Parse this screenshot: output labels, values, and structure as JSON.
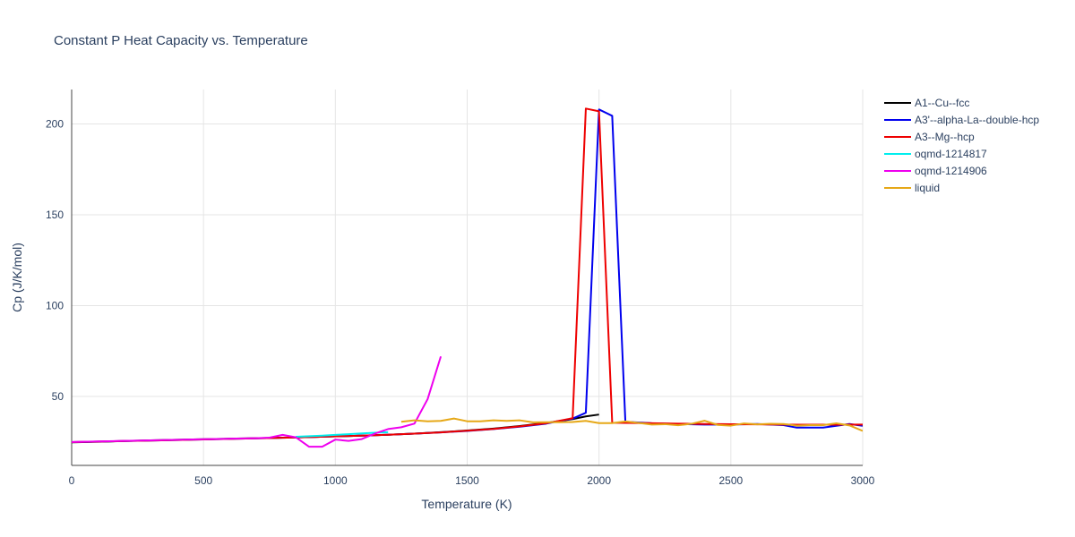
{
  "chart_data": {
    "type": "line",
    "title": "Constant P Heat Capacity vs. Temperature",
    "xlabel": "Temperature (K)",
    "ylabel": "Cp (J/K/mol)",
    "xlim": [
      0,
      3000
    ],
    "ylim": [
      12,
      219
    ],
    "xticks": [
      0,
      500,
      1000,
      1500,
      2000,
      2500,
      3000
    ],
    "yticks": [
      50,
      100,
      150,
      200
    ],
    "grid": true,
    "legend_position": "top-right",
    "series": [
      {
        "name": "A1--Cu--fcc",
        "color": "#000000",
        "x": [
          0,
          100,
          200,
          300,
          400,
          500,
          600,
          700,
          800,
          900,
          1000,
          1100,
          1200,
          1300,
          1400,
          1500,
          1600,
          1700,
          1800,
          1900,
          1950,
          2000
        ],
        "y": [
          24.7,
          25.0,
          25.4,
          25.8,
          26.1,
          26.4,
          26.7,
          27.0,
          27.3,
          27.6,
          28.0,
          28.4,
          28.9,
          29.5,
          30.3,
          31.2,
          32.3,
          33.7,
          35.4,
          37.5,
          39.0,
          40.0
        ]
      },
      {
        "name": "A3'--alpha-La--double-hcp",
        "color": "#0000ee",
        "x": [
          0,
          100,
          200,
          300,
          400,
          500,
          600,
          700,
          800,
          900,
          1000,
          1100,
          1200,
          1300,
          1400,
          1500,
          1600,
          1700,
          1800,
          1900,
          1950,
          2000,
          2050,
          2100,
          2200,
          2300,
          2400,
          2500,
          2600,
          2700,
          2750,
          2800,
          2850,
          2900,
          2950,
          3000
        ],
        "y": [
          24.8,
          25.1,
          25.4,
          25.7,
          26.0,
          26.3,
          26.6,
          26.9,
          27.2,
          27.6,
          28.0,
          28.4,
          28.9,
          29.5,
          30.2,
          31.0,
          32.0,
          33.3,
          35.0,
          37.8,
          41.0,
          208.0,
          204.5,
          36.0,
          35.2,
          34.8,
          34.5,
          34.5,
          34.8,
          34.2,
          32.8,
          32.8,
          32.8,
          33.8,
          34.8,
          33.8
        ]
      },
      {
        "name": "A3--Mg--hcp",
        "color": "#ee0000",
        "x": [
          0,
          100,
          200,
          300,
          400,
          500,
          600,
          700,
          800,
          900,
          1000,
          1100,
          1200,
          1300,
          1400,
          1500,
          1600,
          1700,
          1800,
          1900,
          1950,
          2000,
          2050,
          2100,
          2200,
          2300,
          2400,
          2500,
          2600,
          2700,
          2800,
          2900,
          3000
        ],
        "y": [
          24.8,
          25.1,
          25.4,
          25.7,
          26.0,
          26.3,
          26.6,
          26.9,
          27.2,
          27.6,
          28.0,
          28.4,
          28.9,
          29.5,
          30.2,
          31.1,
          32.1,
          33.5,
          35.2,
          38.0,
          208.5,
          207.0,
          35.5,
          35.4,
          35.2,
          35.0,
          34.8,
          34.7,
          34.6,
          34.5,
          34.4,
          34.4,
          34.5
        ]
      },
      {
        "name": "oqmd-1214817",
        "color": "#00eeee",
        "x": [
          850,
          900,
          950,
          1000,
          1050,
          1100,
          1150,
          1200
        ],
        "y": [
          27.8,
          28.1,
          28.4,
          28.8,
          29.2,
          29.6,
          30.0,
          30.3
        ]
      },
      {
        "name": "oqmd-1214906",
        "color": "#ee00ee",
        "x": [
          0,
          100,
          200,
          300,
          400,
          500,
          600,
          700,
          750,
          800,
          850,
          900,
          950,
          1000,
          1050,
          1100,
          1150,
          1200,
          1250,
          1300,
          1350,
          1400
        ],
        "y": [
          24.9,
          25.2,
          25.5,
          25.8,
          26.1,
          26.4,
          26.7,
          27.0,
          27.3,
          28.8,
          27.5,
          22.3,
          22.3,
          26.2,
          25.5,
          26.5,
          29.5,
          32.0,
          33.0,
          35.0,
          48.5,
          72.0
        ]
      },
      {
        "name": "liquid",
        "color": "#e6a817",
        "x": [
          1250,
          1300,
          1350,
          1400,
          1450,
          1500,
          1550,
          1600,
          1650,
          1700,
          1750,
          1800,
          1850,
          1900,
          1950,
          2000,
          2050,
          2100,
          2150,
          2200,
          2250,
          2300,
          2350,
          2400,
          2450,
          2500,
          2550,
          2600,
          2650,
          2700,
          2750,
          2800,
          2850,
          2900,
          2950,
          3000
        ],
        "y": [
          36.0,
          36.8,
          36.3,
          36.5,
          37.8,
          36.3,
          36.3,
          36.8,
          36.5,
          36.8,
          35.7,
          35.8,
          35.8,
          35.9,
          36.5,
          35.3,
          35.3,
          36.2,
          35.4,
          34.5,
          34.7,
          34.1,
          34.9,
          36.6,
          34.3,
          33.9,
          35.1,
          34.6,
          34.9,
          34.8,
          33.9,
          34.2,
          34.2,
          35.2,
          34.0,
          31.0
        ]
      }
    ]
  }
}
